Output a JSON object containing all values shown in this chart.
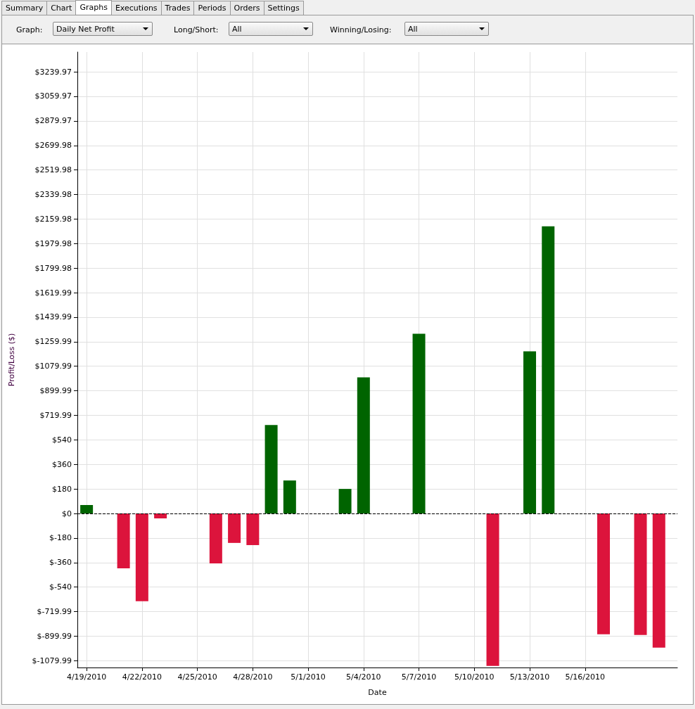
{
  "chart_data": {
    "type": "bar",
    "annotations": [
      "Summary",
      "Chart",
      "Graphs",
      "Executions",
      "Trades",
      "Periods",
      "Orders",
      "Settings",
      "Graph:",
      "Daily Net Profit",
      "Long/Short:",
      "All",
      "Winning/Losing:",
      "All"
    ],
    "xlabel": "Date",
    "ylabel": "Profit/Loss ($)",
    "x": [
      "2010-04-19",
      "2010-04-21",
      "2010-04-22",
      "2010-04-23",
      "2010-04-26",
      "2010-04-27",
      "2010-04-28",
      "2010-04-29",
      "2010-04-30",
      "2010-05-03",
      "2010-05-04",
      "2010-05-05",
      "2010-05-06",
      "2010-05-07",
      "2010-05-11",
      "2010-05-13",
      "2010-05-14",
      "2010-05-17",
      "2010-05-19",
      "2010-05-20"
    ],
    "values": [
      62,
      -402,
      -644,
      -36,
      -366,
      -216,
      -232,
      649,
      242,
      180,
      999,
      null,
      null,
      1318,
      -1118,
      1190,
      2106,
      -886,
      -891,
      -984
    ],
    "colors": [
      "#006400",
      "#dc143c",
      "#dc143c",
      "#dc143c",
      "#dc143c",
      "#dc143c",
      "#dc143c",
      "#006400",
      "#006400",
      "#006400",
      "#006400",
      "#006400",
      "#006400",
      "#006400",
      "#dc143c",
      "#006400",
      "#006400",
      "#dc143c",
      "#dc143c",
      "#dc143c"
    ],
    "xlim": [
      "2010-04-18T12:00",
      "2010-05-21T00:00"
    ],
    "xticks": [
      {
        "value": "2010-04-19",
        "label": "4/19/2010"
      },
      {
        "value": "2010-04-22",
        "label": "4/22/2010"
      },
      {
        "value": "2010-04-25",
        "label": "4/25/2010"
      },
      {
        "value": "2010-04-28",
        "label": "4/28/2010"
      },
      {
        "value": "2010-05-01",
        "label": "5/1/2010"
      },
      {
        "value": "2010-05-04",
        "label": "5/4/2010"
      },
      {
        "value": "2010-05-07",
        "label": "5/7/2010"
      },
      {
        "value": "2010-05-10",
        "label": "5/10/2010"
      },
      {
        "value": "2010-05-13",
        "label": "5/13/2010"
      },
      {
        "value": "2010-05-16",
        "label": "5/16/2010"
      }
    ],
    "ylim": [
      -1130,
      3385
    ],
    "yticks": [
      {
        "value": -1079.99,
        "label": "$-1079.99"
      },
      {
        "value": -899.99,
        "label": "$-899.99"
      },
      {
        "value": -719.99,
        "label": "$-719.99"
      },
      {
        "value": -540,
        "label": "$-540"
      },
      {
        "value": -360,
        "label": "$-360"
      },
      {
        "value": -180,
        "label": "$-180"
      },
      {
        "value": 0,
        "label": "$0"
      },
      {
        "value": 180,
        "label": "$180"
      },
      {
        "value": 360,
        "label": "$360"
      },
      {
        "value": 540,
        "label": "$540"
      },
      {
        "value": 719.99,
        "label": "$719.99"
      },
      {
        "value": 899.99,
        "label": "$899.99"
      },
      {
        "value": 1079.99,
        "label": "$1079.99"
      },
      {
        "value": 1259.99,
        "label": "$1259.99"
      },
      {
        "value": 1439.99,
        "label": "$1439.99"
      },
      {
        "value": 1619.99,
        "label": "$1619.99"
      },
      {
        "value": 1799.98,
        "label": "$1799.98"
      },
      {
        "value": 1979.98,
        "label": "$1979.98"
      },
      {
        "value": 2159.98,
        "label": "$2159.98"
      },
      {
        "value": 2339.98,
        "label": "$2339.98"
      },
      {
        "value": 2519.98,
        "label": "$2519.98"
      },
      {
        "value": 2699.98,
        "label": "$2699.98"
      },
      {
        "value": 2879.97,
        "label": "$2879.97"
      },
      {
        "value": 3059.97,
        "label": "$3059.97"
      },
      {
        "value": 3239.97,
        "label": "$3239.97"
      }
    ],
    "ref_lines": [
      {
        "axis": "y",
        "value": 0,
        "color": "#000000",
        "line_style": "dashed"
      }
    ],
    "grid": true
  }
}
